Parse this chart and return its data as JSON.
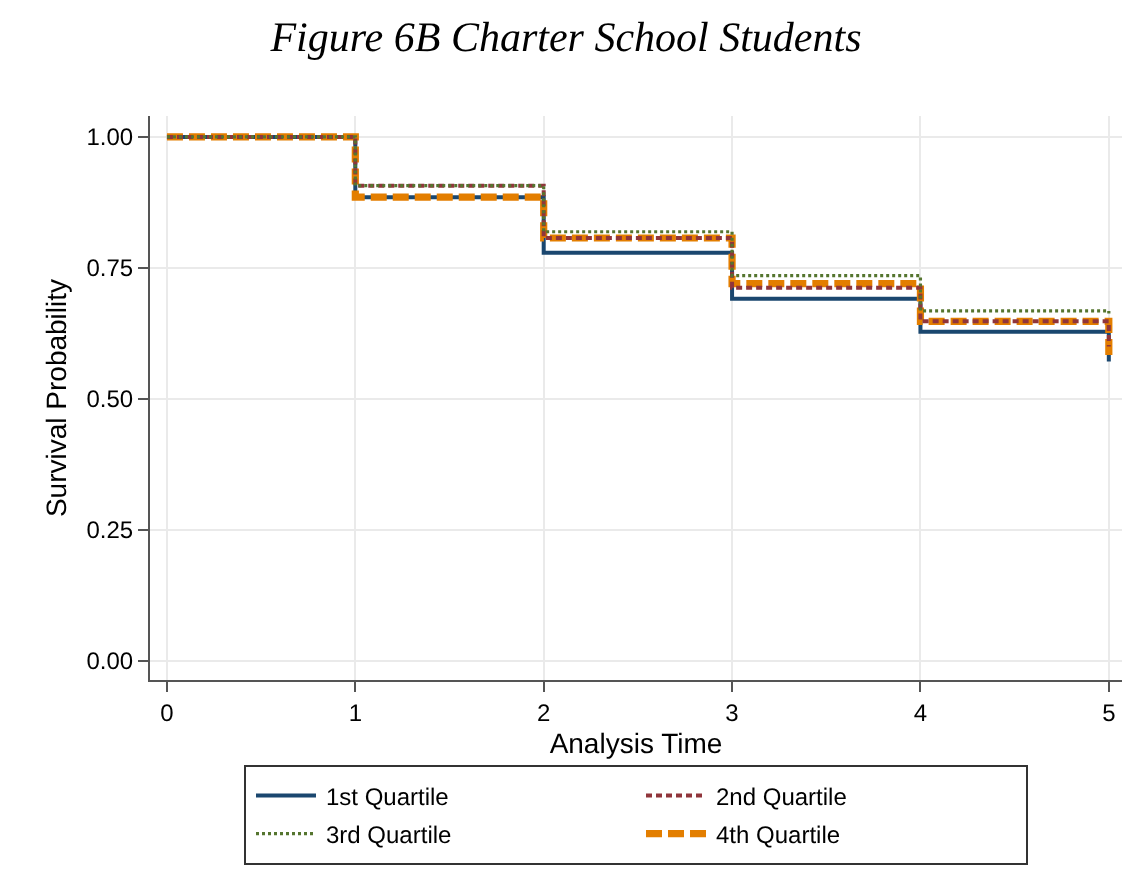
{
  "chart_data": {
    "type": "step",
    "title": "Figure 6B Charter School Students",
    "xlabel": "Analysis Time",
    "ylabel": "Survival Probability",
    "x": [
      0,
      1,
      2,
      3,
      4,
      5
    ],
    "series": [
      {
        "name": "1st Quartile",
        "color": "#1a476f",
        "line_style": "solid",
        "values": [
          1,
          0.885,
          0.779,
          0.691,
          0.628,
          0.571
        ]
      },
      {
        "name": "2nd Quartile",
        "color": "#90353b",
        "line_style": "dashed",
        "values": [
          1,
          0.907,
          0.807,
          0.712,
          0.648,
          0.6
        ]
      },
      {
        "name": "3rd Quartile",
        "color": "#55752f",
        "line_style": "dotted",
        "values": [
          1,
          0.907,
          0.819,
          0.735,
          0.668,
          0.663
        ]
      },
      {
        "name": "4th Quartile",
        "color": "#e37e00",
        "line_style": "longdash",
        "values": [
          1,
          0.885,
          0.807,
          0.72,
          0.648,
          0.583
        ]
      }
    ],
    "xlim": [
      -0.09,
      5.07
    ],
    "ylim": [
      -0.037,
      1.04
    ],
    "xticks": [
      0,
      1,
      2,
      3,
      4,
      5
    ],
    "yticks": [
      {
        "value": 0,
        "label": "0.00"
      },
      {
        "value": 0.25,
        "label": "0.25"
      },
      {
        "value": 0.5,
        "label": "0.50"
      },
      {
        "value": 0.75,
        "label": "0.75"
      },
      {
        "value": 1,
        "label": "1.00"
      }
    ],
    "grid": true,
    "legend": "bottom"
  }
}
